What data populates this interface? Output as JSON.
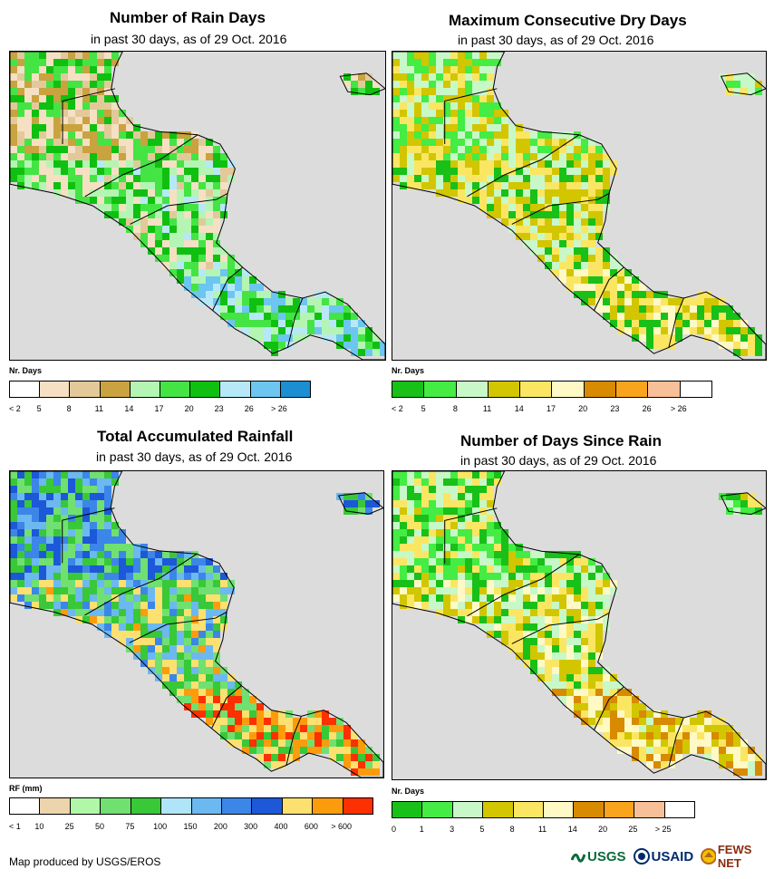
{
  "panels": [
    {
      "title": "Number of Rain Days",
      "subtitle": "in past 30 days, as of 29 Oct. 2016",
      "legend_title": "Nr. Days",
      "legend_labels": [
        "< 2",
        "5",
        "8",
        "11",
        "14",
        "17",
        "20",
        "23",
        "26",
        "> 26"
      ],
      "legend_colors": [
        "#ffffff",
        "#f5e0c3",
        "#e3c99a",
        "#c9a33f",
        "#b4f5b4",
        "#44e444",
        "#10c010",
        "#b7e8f8",
        "#6cc6f0",
        "#1b8fd1"
      ],
      "map_palette": [
        "#c9a33f",
        "#e3c99a",
        "#f5e0c3",
        "#44e444",
        "#10c010",
        "#b4f5b4",
        "#b7e8f8",
        "#6cc6f0"
      ]
    },
    {
      "title": "Maximum Consecutive Dry Days",
      "subtitle": "in past 30 days, as of 29 Oct. 2016",
      "legend_title": "Nr. Days",
      "legend_labels": [
        "< 2",
        "5",
        "8",
        "11",
        "14",
        "17",
        "20",
        "23",
        "26",
        "> 26"
      ],
      "legend_colors": [
        "#18c018",
        "#44ec44",
        "#c8f8c8",
        "#d2c600",
        "#fae662",
        "#fff9c6",
        "#d88a00",
        "#f8a41c",
        "#f8c098",
        "#ffffff"
      ],
      "map_palette": [
        "#44ec44",
        "#c8f8c8",
        "#d2c600",
        "#fae662",
        "#18c018",
        "#fff9c6"
      ]
    },
    {
      "title": "Total Accumulated Rainfall",
      "subtitle": "in past 30 days, as of 29 Oct. 2016",
      "legend_title": "RF (mm)",
      "legend_labels": [
        "< 1",
        "10",
        "25",
        "50",
        "75",
        "100",
        "150",
        "200",
        "300",
        "400",
        "600",
        "> 600"
      ],
      "legend_colors": [
        "#ffffff",
        "#ecd4ac",
        "#b0f8a8",
        "#70e070",
        "#38c838",
        "#b0e4f8",
        "#6cb8f0",
        "#3c86e8",
        "#1c58d8",
        "#fce070",
        "#fc9c0c",
        "#fc3000"
      ],
      "map_palette": [
        "#1c58d8",
        "#3c86e8",
        "#6cb8f0",
        "#38c838",
        "#70e070",
        "#fce070",
        "#fc9c0c",
        "#fc3000"
      ]
    },
    {
      "title": "Number of Days Since Rain",
      "subtitle": "in past 30 days, as of 29 Oct. 2016",
      "legend_title": "Nr. Days",
      "legend_labels": [
        "0",
        "1",
        "3",
        "5",
        "8",
        "11",
        "14",
        "20",
        "25",
        "> 25"
      ],
      "legend_colors": [
        "#18c018",
        "#44ec44",
        "#c8f8c8",
        "#d2c600",
        "#fae662",
        "#fff9c6",
        "#d88a00",
        "#f8a41c",
        "#f8c098",
        "#ffffff"
      ],
      "map_palette": [
        "#44ec44",
        "#18c018",
        "#c8f8c8",
        "#fae662",
        "#d2c600",
        "#fff9c6",
        "#d88a00"
      ]
    }
  ],
  "credit": "Map produced by USGS/EROS",
  "logos": [
    "USGS",
    "USAID",
    "FEWS NET"
  ]
}
